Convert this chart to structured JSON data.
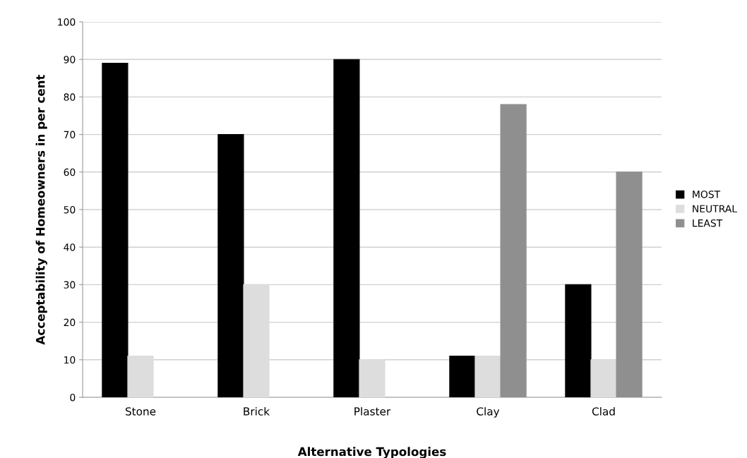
{
  "chart_data": {
    "type": "bar",
    "xlabel": "Alternative Typologies",
    "ylabel": "Acceptability of Homeowners in per cent",
    "categories": [
      "Stone",
      "Brick",
      "Plaster",
      "Clay",
      "Clad"
    ],
    "series": [
      {
        "name": "MOST",
        "color": "#000000",
        "values": [
          89,
          70,
          90,
          11,
          30
        ]
      },
      {
        "name": "NEUTRAL",
        "color": "#dddddd",
        "values": [
          11,
          30,
          10,
          11,
          10
        ]
      },
      {
        "name": "LEAST",
        "color": "#8f8f8f",
        "values": [
          null,
          null,
          null,
          78,
          60
        ]
      }
    ],
    "ylim": [
      0,
      100
    ],
    "yticks": [
      0,
      10,
      20,
      30,
      40,
      50,
      60,
      70,
      80,
      90,
      100
    ],
    "grid": "y",
    "legend": "right"
  }
}
